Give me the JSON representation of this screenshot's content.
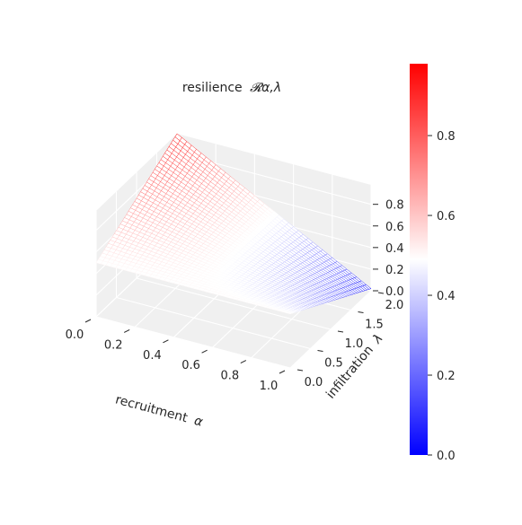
{
  "chart_data": {
    "type": "surface3d",
    "title": "resilience",
    "title_math": "𝓡α,λ",
    "xlabel": "recruitment",
    "xlabel_math": "α",
    "ylabel": "infiltration",
    "ylabel_math": "λ",
    "zlabel": "",
    "xlim": [
      0.0,
      1.0
    ],
    "ylim": [
      0.0,
      2.0
    ],
    "zlim": [
      0.0,
      0.98
    ],
    "x_ticks": [
      "0.0",
      "0.2",
      "0.4",
      "0.6",
      "0.8",
      "1.0"
    ],
    "y_ticks": [
      "0.0",
      "0.5",
      "1.0",
      "1.5",
      "2.0"
    ],
    "z_ticks": [
      "0.0",
      "0.2",
      "0.4",
      "0.6",
      "0.8"
    ],
    "surface_samples": [
      {
        "alpha": 0.0,
        "lambda": 0.0,
        "value": 0.5
      },
      {
        "alpha": 0.0,
        "lambda": 2.0,
        "value": 0.98
      },
      {
        "alpha": 1.0,
        "lambda": 0.0,
        "value": 0.5
      },
      {
        "alpha": 1.0,
        "lambda": 2.0,
        "value": 0.02
      }
    ],
    "colormap": "bwr",
    "colorbar": {
      "vmin": 0.0,
      "vmax": 0.98,
      "ticks": [
        "0.0",
        "0.2",
        "0.4",
        "0.6",
        "0.8"
      ],
      "colors": {
        "low": "#0000ff",
        "mid": "#ffffff",
        "high": "#ff0000"
      }
    },
    "grid": true,
    "pane_color": "#f0f0f0"
  }
}
